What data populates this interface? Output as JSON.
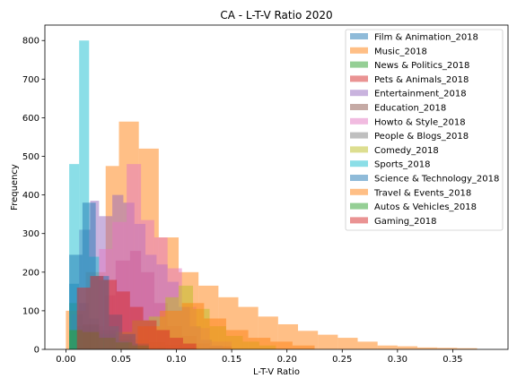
{
  "chart_data": {
    "type": "bar",
    "title": "CA - L-T-V Ratio 2020",
    "xlabel": "L-T-V Ratio",
    "ylabel": "Frequency",
    "xlim": [
      -0.019,
      0.4
    ],
    "ylim": [
      0,
      840
    ],
    "xticks": [
      0.0,
      0.05,
      0.1,
      0.15,
      0.2,
      0.25,
      0.3,
      0.35
    ],
    "xtick_labels": [
      "0.00",
      "0.05",
      "0.10",
      "0.15",
      "0.20",
      "0.25",
      "0.30",
      "0.35"
    ],
    "yticks": [
      0,
      100,
      200,
      300,
      400,
      500,
      600,
      700,
      800
    ],
    "legend_position": "top-right",
    "series": [
      {
        "name": "Film & Animation_2018",
        "color": "#1f77b4",
        "bins": [
          [
            0.003,
            0.012,
            170
          ],
          [
            0.012,
            0.021,
            120
          ],
          [
            0.021,
            0.03,
            80
          ],
          [
            0.03,
            0.039,
            45
          ],
          [
            0.039,
            0.048,
            25
          ],
          [
            0.048,
            0.057,
            12
          ],
          [
            0.057,
            0.066,
            5
          ]
        ]
      },
      {
        "name": "Music_2018",
        "color": "#ff7f0e",
        "bins": [
          [
            0.0,
            0.018,
            100
          ],
          [
            0.018,
            0.036,
            200
          ],
          [
            0.036,
            0.048,
            475
          ],
          [
            0.048,
            0.066,
            590
          ],
          [
            0.066,
            0.084,
            520
          ],
          [
            0.084,
            0.102,
            290
          ],
          [
            0.102,
            0.12,
            200
          ],
          [
            0.12,
            0.138,
            165
          ],
          [
            0.138,
            0.156,
            135
          ],
          [
            0.156,
            0.174,
            110
          ],
          [
            0.174,
            0.192,
            85
          ],
          [
            0.192,
            0.21,
            65
          ],
          [
            0.21,
            0.228,
            48
          ],
          [
            0.228,
            0.246,
            38
          ],
          [
            0.246,
            0.264,
            30
          ],
          [
            0.264,
            0.282,
            20
          ],
          [
            0.282,
            0.3,
            10
          ],
          [
            0.3,
            0.318,
            8
          ],
          [
            0.318,
            0.336,
            5
          ],
          [
            0.336,
            0.354,
            4
          ],
          [
            0.354,
            0.372,
            3
          ]
        ]
      },
      {
        "name": "News & Politics_2018",
        "color": "#2ca02c",
        "bins": [
          [
            0.003,
            0.01,
            120
          ],
          [
            0.01,
            0.017,
            60
          ],
          [
            0.017,
            0.024,
            30
          ],
          [
            0.024,
            0.031,
            15
          ],
          [
            0.031,
            0.038,
            6
          ]
        ]
      },
      {
        "name": "Pets & Animals_2018",
        "color": "#d62728",
        "bins": [
          [
            0.015,
            0.035,
            60
          ],
          [
            0.035,
            0.045,
            140
          ],
          [
            0.045,
            0.058,
            230
          ],
          [
            0.058,
            0.068,
            255
          ],
          [
            0.068,
            0.08,
            200
          ],
          [
            0.08,
            0.092,
            120
          ],
          [
            0.092,
            0.105,
            60
          ],
          [
            0.105,
            0.118,
            35
          ],
          [
            0.118,
            0.13,
            15
          ],
          [
            0.13,
            0.15,
            8
          ]
        ]
      },
      {
        "name": "Entertainment_2018",
        "color": "#9467bd",
        "bins": [
          [
            0.012,
            0.022,
            310
          ],
          [
            0.022,
            0.03,
            385
          ],
          [
            0.03,
            0.042,
            345
          ],
          [
            0.042,
            0.052,
            400
          ],
          [
            0.052,
            0.062,
            380
          ],
          [
            0.062,
            0.072,
            325
          ],
          [
            0.072,
            0.082,
            245
          ],
          [
            0.082,
            0.092,
            220
          ],
          [
            0.092,
            0.102,
            175
          ],
          [
            0.102,
            0.112,
            110
          ],
          [
            0.112,
            0.122,
            60
          ],
          [
            0.122,
            0.132,
            25
          ],
          [
            0.132,
            0.142,
            10
          ]
        ]
      },
      {
        "name": "Education_2018",
        "color": "#8c564b",
        "bins": [
          [
            0.015,
            0.03,
            65
          ],
          [
            0.03,
            0.045,
            50
          ],
          [
            0.045,
            0.06,
            35
          ],
          [
            0.06,
            0.075,
            25
          ],
          [
            0.075,
            0.09,
            18
          ],
          [
            0.09,
            0.105,
            12
          ],
          [
            0.105,
            0.12,
            8
          ]
        ]
      },
      {
        "name": "Howto & Style_2018",
        "color": "#e377c2",
        "bins": [
          [
            0.03,
            0.042,
            260
          ],
          [
            0.042,
            0.055,
            330
          ],
          [
            0.055,
            0.068,
            480
          ],
          [
            0.068,
            0.08,
            335
          ],
          [
            0.08,
            0.092,
            290
          ],
          [
            0.092,
            0.105,
            210
          ],
          [
            0.105,
            0.118,
            110
          ],
          [
            0.118,
            0.13,
            55
          ],
          [
            0.13,
            0.15,
            20
          ]
        ]
      },
      {
        "name": "People & Blogs_2018",
        "color": "#7f7f7f",
        "bins": [
          [
            0.005,
            0.015,
            90
          ],
          [
            0.015,
            0.03,
            60
          ],
          [
            0.03,
            0.045,
            40
          ],
          [
            0.045,
            0.06,
            25
          ],
          [
            0.06,
            0.075,
            15
          ],
          [
            0.075,
            0.09,
            8
          ]
        ]
      },
      {
        "name": "Comedy_2018",
        "color": "#bcbd22",
        "bins": [
          [
            0.045,
            0.06,
            45
          ],
          [
            0.06,
            0.075,
            75
          ],
          [
            0.075,
            0.09,
            85
          ],
          [
            0.09,
            0.102,
            135
          ],
          [
            0.102,
            0.115,
            165
          ],
          [
            0.115,
            0.13,
            105
          ],
          [
            0.13,
            0.145,
            60
          ],
          [
            0.145,
            0.16,
            35
          ],
          [
            0.16,
            0.175,
            20
          ],
          [
            0.175,
            0.19,
            10
          ]
        ]
      },
      {
        "name": "Sports_2018",
        "color": "#17becf",
        "bins": [
          [
            0.003,
            0.012,
            480
          ],
          [
            0.012,
            0.021,
            800
          ],
          [
            0.021,
            0.03,
            240
          ],
          [
            0.03,
            0.039,
            180
          ],
          [
            0.039,
            0.048,
            60
          ],
          [
            0.048,
            0.057,
            20
          ]
        ]
      },
      {
        "name": "Science & Technology_2018",
        "color": "#1f77b4",
        "bins": [
          [
            0.003,
            0.015,
            245
          ],
          [
            0.015,
            0.027,
            380
          ],
          [
            0.027,
            0.039,
            190
          ],
          [
            0.039,
            0.051,
            90
          ],
          [
            0.051,
            0.063,
            40
          ],
          [
            0.063,
            0.075,
            15
          ]
        ]
      },
      {
        "name": "Travel & Events_2018",
        "color": "#ff7f0e",
        "bins": [
          [
            0.065,
            0.085,
            60
          ],
          [
            0.085,
            0.105,
            100
          ],
          [
            0.105,
            0.125,
            120
          ],
          [
            0.125,
            0.145,
            80
          ],
          [
            0.145,
            0.165,
            50
          ],
          [
            0.165,
            0.185,
            30
          ],
          [
            0.185,
            0.205,
            20
          ],
          [
            0.205,
            0.225,
            10
          ]
        ]
      },
      {
        "name": "Autos & Vehicles_2018",
        "color": "#2ca02c",
        "bins": [
          [
            0.003,
            0.015,
            50
          ],
          [
            0.015,
            0.03,
            45
          ],
          [
            0.03,
            0.045,
            30
          ],
          [
            0.045,
            0.06,
            18
          ],
          [
            0.06,
            0.075,
            10
          ]
        ]
      },
      {
        "name": "Gaming_2018",
        "color": "#d62728",
        "bins": [
          [
            0.01,
            0.022,
            160
          ],
          [
            0.022,
            0.034,
            190
          ],
          [
            0.034,
            0.046,
            180
          ],
          [
            0.046,
            0.058,
            150
          ],
          [
            0.058,
            0.07,
            110
          ],
          [
            0.07,
            0.082,
            75
          ],
          [
            0.082,
            0.094,
            50
          ],
          [
            0.094,
            0.106,
            30
          ],
          [
            0.106,
            0.118,
            15
          ]
        ]
      }
    ]
  }
}
